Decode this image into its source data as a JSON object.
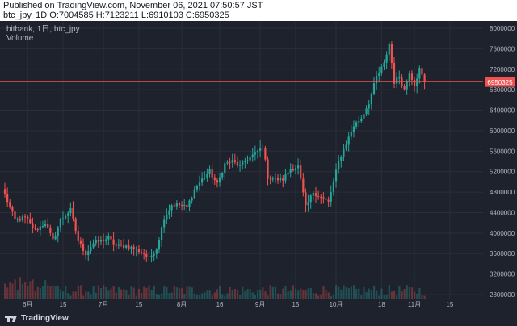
{
  "header": {
    "line1": "Published on TradingView.com, November 06, 2021 07:50:57 JST",
    "line2": "btc_jpy, 1D O:7004585 H:7123211 L:6910103 C:6950325"
  },
  "legend": {
    "line1": "bitbank, 1日, btc_jpy",
    "line2": "Volume"
  },
  "footer": {
    "brand": "TradingView"
  },
  "colors": {
    "up": "#26a69a",
    "down": "#ef5350",
    "background": "#1e222d",
    "axis_text": "#b2b5be",
    "price_line": "#ef5350"
  },
  "chart_data": {
    "type": "candlestick",
    "symbol": "btc_jpy",
    "interval": "1D",
    "last_price": 6950325,
    "last_price_label": "6950325",
    "y_ticks": [
      2800000,
      3200000,
      3600000,
      4000000,
      4400000,
      4800000,
      5200000,
      5600000,
      6000000,
      6400000,
      6800000,
      7200000,
      7600000,
      8000000
    ],
    "y_tick_labels": [
      "2800000",
      "3200000",
      "3600000",
      "4000000",
      "4400000",
      "4800000",
      "5200000",
      "5600000",
      "6000000",
      "6400000",
      "6800000",
      "7200000",
      "7600000",
      "8000000"
    ],
    "x_ticks": [
      {
        "label": "6月",
        "index": 9
      },
      {
        "label": "15",
        "index": 23
      },
      {
        "label": "7月",
        "index": 39
      },
      {
        "label": "15",
        "index": 53
      },
      {
        "label": "8月",
        "index": 70
      },
      {
        "label": "16",
        "index": 85
      },
      {
        "label": "9月",
        "index": 101
      },
      {
        "label": "15",
        "index": 115
      },
      {
        "label": "10月",
        "index": 131
      },
      {
        "label": "18",
        "index": 149
      },
      {
        "label": "11月",
        "index": 162
      },
      {
        "label": "15",
        "index": 176
      }
    ],
    "close_anchors": [
      [
        0,
        4750000
      ],
      [
        4,
        4250000
      ],
      [
        8,
        4300000
      ],
      [
        12,
        4050000
      ],
      [
        16,
        4200000
      ],
      [
        19,
        3850000
      ],
      [
        22,
        4250000
      ],
      [
        26,
        4450000
      ],
      [
        29,
        3850000
      ],
      [
        32,
        3600000
      ],
      [
        35,
        3800000
      ],
      [
        38,
        3850000
      ],
      [
        41,
        3900000
      ],
      [
        44,
        3750000
      ],
      [
        48,
        3750000
      ],
      [
        52,
        3680000
      ],
      [
        55,
        3600000
      ],
      [
        57,
        3500000
      ],
      [
        60,
        3700000
      ],
      [
        63,
        4300000
      ],
      [
        66,
        4550000
      ],
      [
        69,
        4550000
      ],
      [
        72,
        4500000
      ],
      [
        75,
        4850000
      ],
      [
        78,
        5050000
      ],
      [
        81,
        5200000
      ],
      [
        84,
        4950000
      ],
      [
        87,
        5350000
      ],
      [
        90,
        5400000
      ],
      [
        93,
        5300000
      ],
      [
        96,
        5450000
      ],
      [
        99,
        5550000
      ],
      [
        102,
        5700000
      ],
      [
        104,
        5100000
      ],
      [
        107,
        5050000
      ],
      [
        110,
        5050000
      ],
      [
        113,
        5250000
      ],
      [
        116,
        5300000
      ],
      [
        119,
        4500000
      ],
      [
        122,
        4800000
      ],
      [
        125,
        4700000
      ],
      [
        128,
        4600000
      ],
      [
        130,
        5000000
      ],
      [
        132,
        5400000
      ],
      [
        135,
        5750000
      ],
      [
        138,
        6100000
      ],
      [
        141,
        6250000
      ],
      [
        144,
        6550000
      ],
      [
        147,
        7050000
      ],
      [
        150,
        7300000
      ],
      [
        152,
        7700000
      ],
      [
        154,
        6950000
      ],
      [
        156,
        7050000
      ],
      [
        158,
        6800000
      ],
      [
        160,
        7150000
      ],
      [
        162,
        6900000
      ],
      [
        164,
        7200000
      ],
      [
        166,
        6950325
      ]
    ]
  }
}
